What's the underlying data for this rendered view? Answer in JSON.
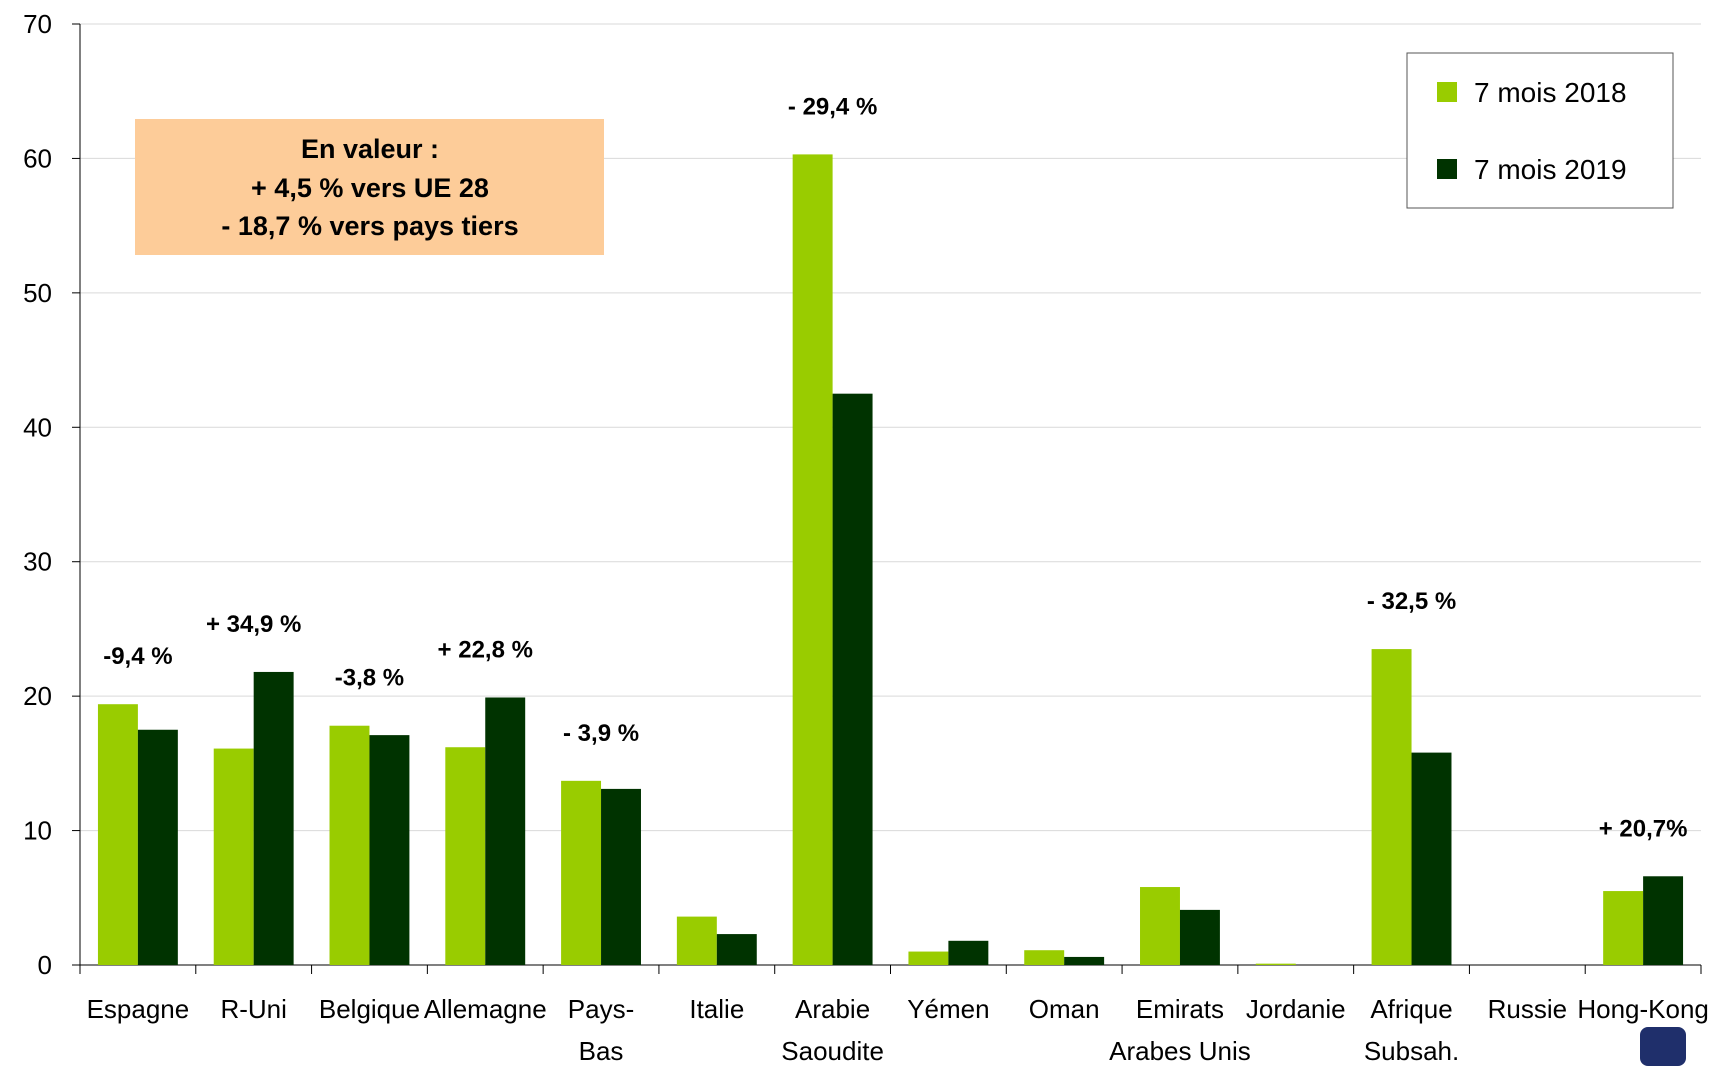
{
  "chart_data": {
    "type": "bar",
    "categories": [
      "Espagne",
      "R-Uni",
      "Belgique",
      "Allemagne",
      "Pays-\nBas",
      "Italie",
      "Arabie\nSaoudite",
      "Yémen",
      "Oman",
      "Emirats\nArabes Unis",
      "Jordanie",
      "Afrique\nSubsah.",
      "Russie",
      "Hong-Kong"
    ],
    "series": [
      {
        "name": "7 mois 2018",
        "color": "#99cc00",
        "values": [
          19.4,
          16.1,
          17.8,
          16.2,
          13.7,
          3.6,
          60.3,
          1.0,
          1.1,
          5.8,
          0.1,
          23.5,
          0,
          5.5
        ]
      },
      {
        "name": "7 mois 2019",
        "color": "#003300",
        "values": [
          17.5,
          21.8,
          17.1,
          19.9,
          13.1,
          2.3,
          42.5,
          1.8,
          0.6,
          4.1,
          0,
          15.8,
          0,
          6.6
        ]
      }
    ],
    "ylim": [
      0,
      70
    ],
    "yticks": [
      0,
      10,
      20,
      30,
      40,
      50,
      60,
      70
    ],
    "grid": true,
    "legend": "upper right",
    "annotations": [
      {
        "text": "-9,4 %",
        "category": 0
      },
      {
        "text": "+ 34,9 %",
        "category": 1
      },
      {
        "text": "-3,8 %",
        "category": 2
      },
      {
        "text": "+ 22,8 %",
        "category": 3
      },
      {
        "text": "- 3,9 %",
        "category": 4
      },
      {
        "text": "- 29,4 %",
        "category": 6
      },
      {
        "text": "- 32,5 %",
        "category": 11
      },
      {
        "text": "+ 20,7%",
        "category": 13
      }
    ],
    "note": [
      "En valeur :",
      "+ 4,5 % vers UE 28",
      "- 18,7 % vers pays tiers"
    ]
  }
}
